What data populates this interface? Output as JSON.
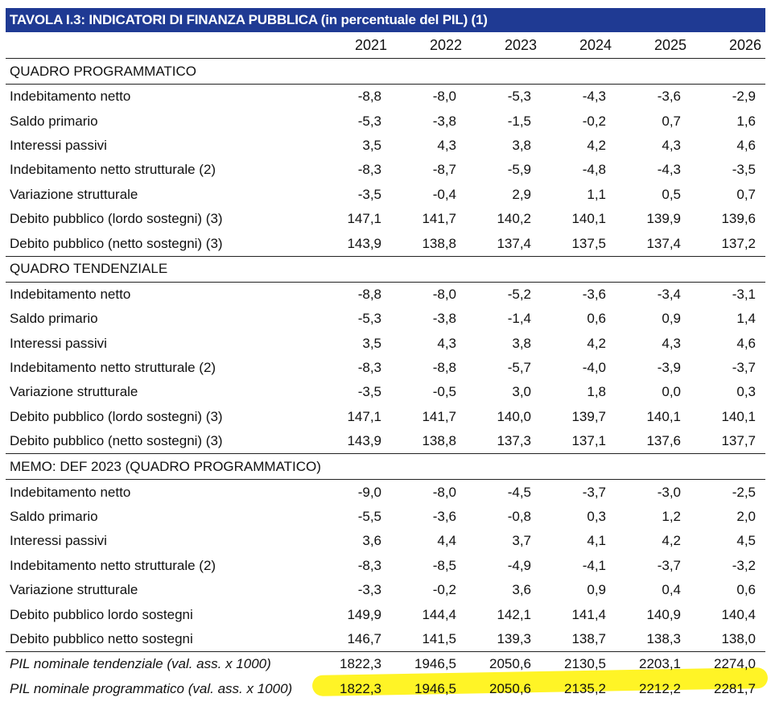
{
  "title": "TAVOLA I.3: INDICATORI DI FINANZA PUBBLICA (in percentuale del PIL) (1)",
  "years": [
    "2021",
    "2022",
    "2023",
    "2024",
    "2025",
    "2026"
  ],
  "sections": [
    {
      "heading": "QUADRO PROGRAMMATICO",
      "rows": [
        {
          "label": "Indebitamento netto",
          "values": [
            "-8,8",
            "-8,0",
            "-5,3",
            "-4,3",
            "-3,6",
            "-2,9"
          ]
        },
        {
          "label": "Saldo primario",
          "values": [
            "-5,3",
            "-3,8",
            "-1,5",
            "-0,2",
            "0,7",
            "1,6"
          ]
        },
        {
          "label": "Interessi passivi",
          "values": [
            "3,5",
            "4,3",
            "3,8",
            "4,2",
            "4,3",
            "4,6"
          ]
        },
        {
          "label": "Indebitamento netto strutturale (2)",
          "values": [
            "-8,3",
            "-8,7",
            "-5,9",
            "-4,8",
            "-4,3",
            "-3,5"
          ]
        },
        {
          "label": "Variazione strutturale",
          "values": [
            "-3,5",
            "-0,4",
            "2,9",
            "1,1",
            "0,5",
            "0,7"
          ]
        },
        {
          "label": "Debito pubblico (lordo sostegni) (3)",
          "values": [
            "147,1",
            "141,7",
            "140,2",
            "140,1",
            "139,9",
            "139,6"
          ]
        },
        {
          "label": "Debito pubblico (netto sostegni) (3)",
          "values": [
            "143,9",
            "138,8",
            "137,4",
            "137,5",
            "137,4",
            "137,2"
          ]
        }
      ]
    },
    {
      "heading": "QUADRO TENDENZIALE",
      "rows": [
        {
          "label": "Indebitamento netto",
          "values": [
            "-8,8",
            "-8,0",
            "-5,2",
            "-3,6",
            "-3,4",
            "-3,1"
          ]
        },
        {
          "label": "Saldo primario",
          "values": [
            "-5,3",
            "-3,8",
            "-1,4",
            "0,6",
            "0,9",
            "1,4"
          ]
        },
        {
          "label": "Interessi passivi",
          "values": [
            "3,5",
            "4,3",
            "3,8",
            "4,2",
            "4,3",
            "4,6"
          ]
        },
        {
          "label": "Indebitamento netto strutturale (2)",
          "values": [
            "-8,3",
            "-8,8",
            "-5,7",
            "-4,0",
            "-3,9",
            "-3,7"
          ]
        },
        {
          "label": "Variazione strutturale",
          "values": [
            "-3,5",
            "-0,5",
            "3,0",
            "1,8",
            "0,0",
            "0,3"
          ]
        },
        {
          "label": "Debito pubblico (lordo sostegni) (3)",
          "values": [
            "147,1",
            "141,7",
            "140,0",
            "139,7",
            "140,1",
            "140,1"
          ]
        },
        {
          "label": "Debito pubblico (netto sostegni) (3)",
          "values": [
            "143,9",
            "138,8",
            "137,3",
            "137,1",
            "137,6",
            "137,7"
          ]
        }
      ]
    },
    {
      "heading": "MEMO: DEF 2023 (QUADRO PROGRAMMATICO)",
      "rows": [
        {
          "label": "Indebitamento netto",
          "values": [
            "-9,0",
            "-8,0",
            "-4,5",
            "-3,7",
            "-3,0",
            "-2,5"
          ]
        },
        {
          "label": "Saldo primario",
          "values": [
            "-5,5",
            "-3,6",
            "-0,8",
            "0,3",
            "1,2",
            "2,0"
          ]
        },
        {
          "label": "Interessi passivi",
          "values": [
            "3,6",
            "4,4",
            "3,7",
            "4,1",
            "4,2",
            "4,5"
          ]
        },
        {
          "label": "Indebitamento netto strutturale (2)",
          "values": [
            "-8,3",
            "-8,5",
            "-4,9",
            "-4,1",
            "-3,7",
            "-3,2"
          ]
        },
        {
          "label": "Variazione strutturale",
          "values": [
            "-3,3",
            "-0,2",
            "3,6",
            "0,9",
            "0,4",
            "0,6"
          ]
        },
        {
          "label": "Debito pubblico lordo sostegni",
          "values": [
            "149,9",
            "144,4",
            "142,1",
            "141,4",
            "140,9",
            "140,4"
          ]
        },
        {
          "label": "Debito pubblico netto sostegni",
          "values": [
            "146,7",
            "141,5",
            "139,3",
            "138,7",
            "138,3",
            "138,0"
          ]
        }
      ]
    }
  ],
  "footer_rows": [
    {
      "label": "PIL nominale tendenziale (val. ass. x 1000)",
      "values": [
        "1822,3",
        "1946,5",
        "2050,6",
        "2130,5",
        "2203,1",
        "2274,0"
      ]
    },
    {
      "label": "PIL nominale programmatico (val. ass. x 1000)",
      "values": [
        "1822,3",
        "1946,5",
        "2050,6",
        "2135,2",
        "2212,2",
        "2281,7"
      ]
    }
  ],
  "colors": {
    "title_bg": "#1f3a93",
    "highlight": "#fff200"
  }
}
